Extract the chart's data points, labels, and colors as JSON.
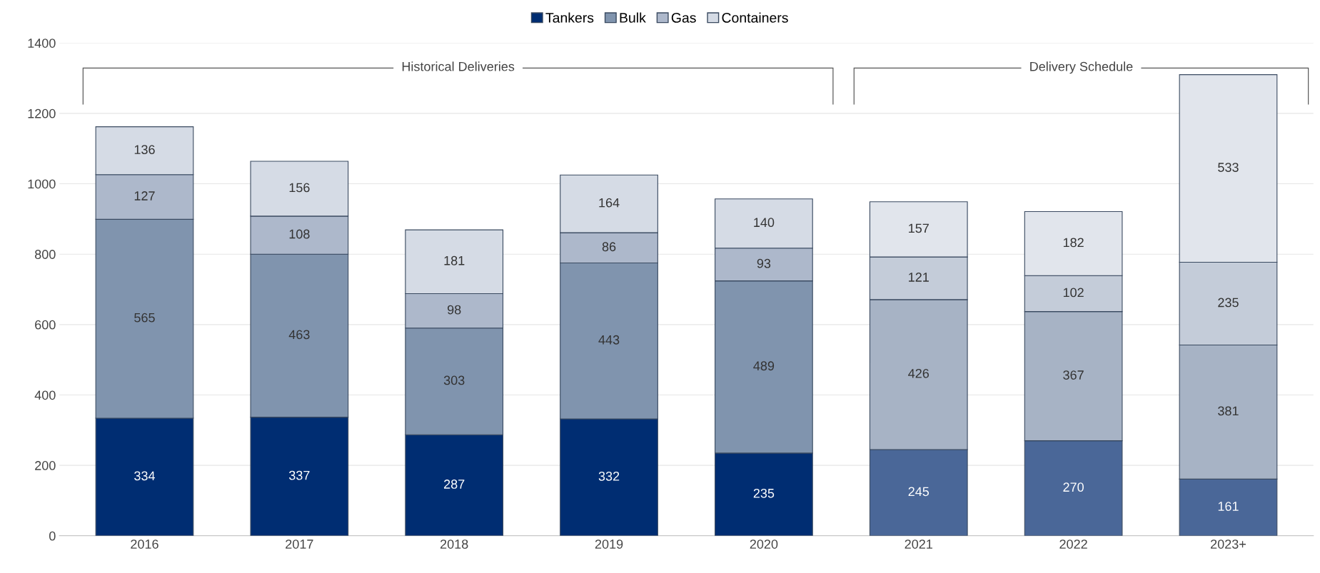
{
  "chart_data": {
    "type": "bar",
    "stacked": true,
    "data_labels": true,
    "grid": "y",
    "legend": "top",
    "categories": [
      "2016",
      "2017",
      "2018",
      "2019",
      "2020",
      "2021",
      "2022",
      "2023+"
    ],
    "series": [
      {
        "name": "Tankers",
        "color": "#002d72",
        "colors": [
          "#002d72",
          "#002d72",
          "#002d72",
          "#002d72",
          "#002d72",
          "#4a6798",
          "#4a6798",
          "#4a6798"
        ],
        "values": [
          334,
          337,
          287,
          332,
          235,
          245,
          270,
          161
        ]
      },
      {
        "name": "Bulk",
        "color": "#8094ae",
        "colors": [
          "#8094ae",
          "#8094ae",
          "#8094ae",
          "#8094ae",
          "#8094ae",
          "#a7b3c5",
          "#a7b3c5",
          "#a7b3c5"
        ],
        "values": [
          565,
          463,
          303,
          443,
          489,
          426,
          367,
          381
        ]
      },
      {
        "name": "Gas",
        "color": "#adb8cb",
        "colors": [
          "#adb8cb",
          "#adb8cb",
          "#adb8cb",
          "#adb8cb",
          "#adb8cb",
          "#c4ccd9",
          "#c4ccd9",
          "#c4ccd9"
        ],
        "values": [
          127,
          108,
          98,
          86,
          93,
          121,
          102,
          235
        ]
      },
      {
        "name": "Containers",
        "color": "#d5dbe5",
        "colors": [
          "#d5dbe5",
          "#d5dbe5",
          "#d5dbe5",
          "#d5dbe5",
          "#d5dbe5",
          "#e1e5ec",
          "#e1e5ec",
          "#e1e5ec"
        ],
        "values": [
          136,
          156,
          181,
          164,
          140,
          157,
          182,
          533
        ]
      }
    ],
    "ylim": [
      0,
      1400
    ],
    "yticks": [
      0,
      200,
      400,
      600,
      800,
      1000,
      1200,
      1400
    ],
    "annotations": [
      "Historical Deliveries",
      "Delivery Schedule"
    ]
  }
}
